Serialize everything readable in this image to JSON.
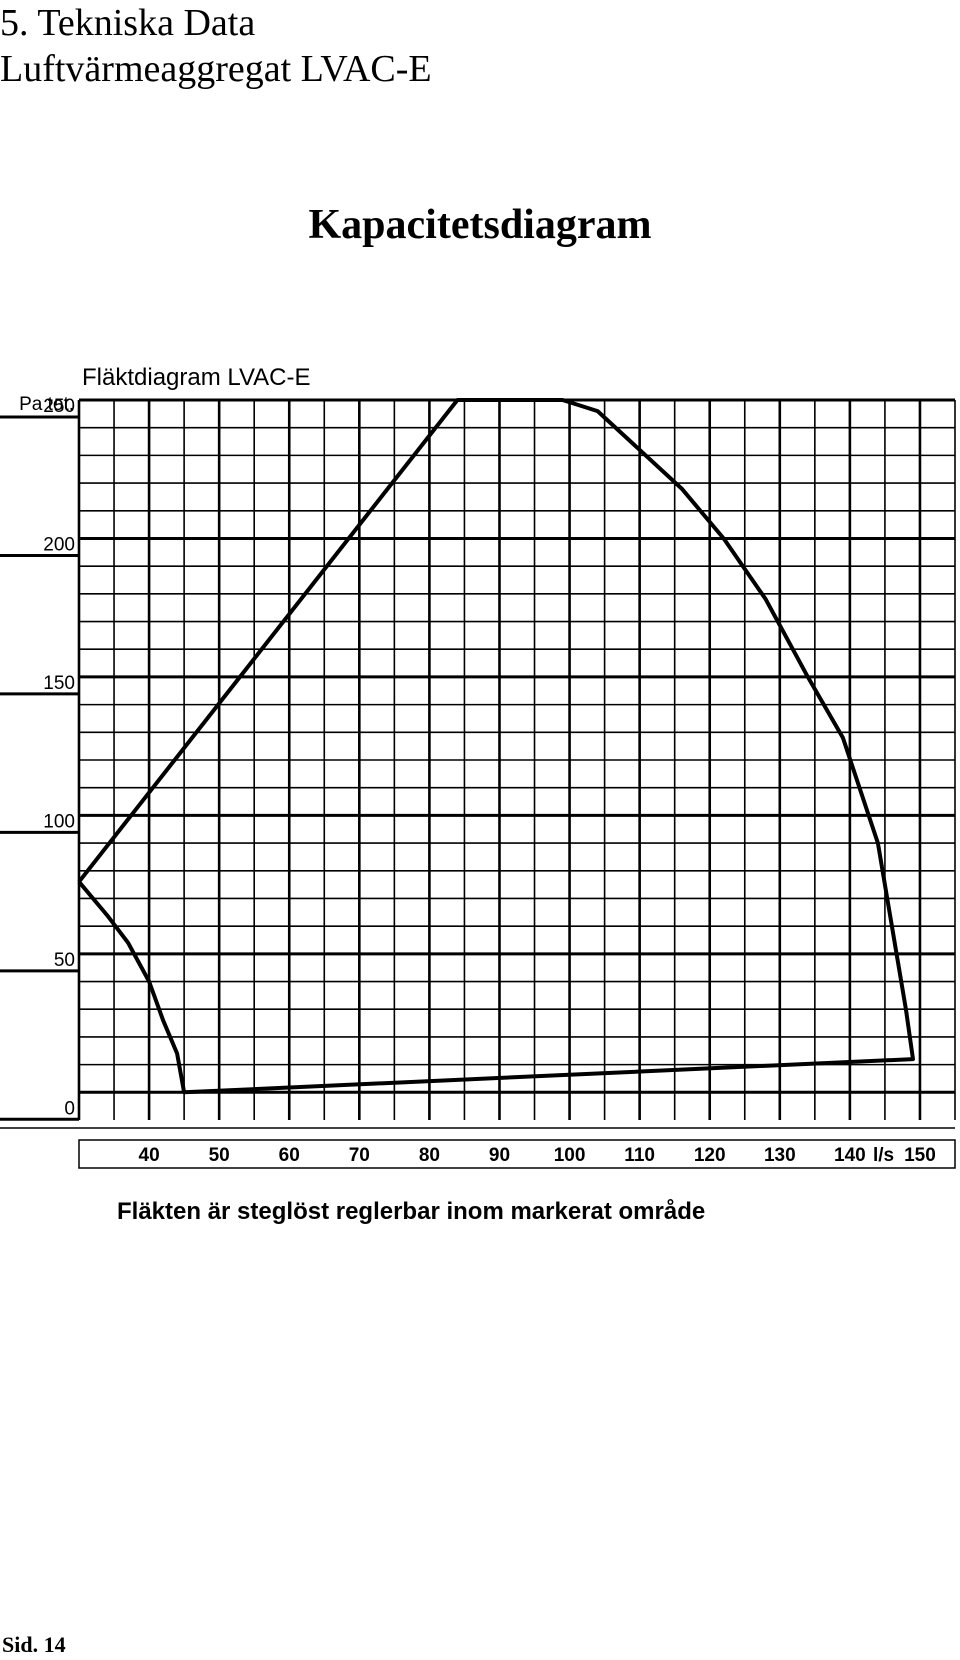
{
  "document": {
    "heading_line1": "5. Tekniska Data",
    "heading_line2": "Luftvärmeaggregat LVAC-E",
    "diagram_title": "Kapacitetsdiagram",
    "caption": "Fläkten är steglöst reglerbar inom markerat område",
    "page_number": "Sid. 14"
  },
  "chart_data": {
    "type": "area",
    "title": "Fläktdiagram LVAC-E",
    "ylabel": "Pa tot.",
    "x_unit": "l/s",
    "xlim": [
      30,
      155
    ],
    "ylim": [
      -10,
      250
    ],
    "x_ticks": [
      40,
      50,
      60,
      70,
      80,
      90,
      100,
      110,
      120,
      130,
      140,
      150
    ],
    "y_ticks": [
      0,
      50,
      100,
      150,
      200,
      250
    ],
    "grid": true,
    "series": [
      {
        "name": "",
        "points": [
          [
            30,
            76
          ],
          [
            34,
            64
          ],
          [
            37,
            54
          ],
          [
            40,
            40
          ],
          [
            42,
            26
          ],
          [
            44,
            14
          ],
          [
            45,
            0
          ],
          [
            149,
            12
          ],
          [
            148,
            30
          ],
          [
            144,
            90
          ],
          [
            139,
            128
          ],
          [
            134,
            150
          ],
          [
            128,
            178
          ],
          [
            122,
            200
          ],
          [
            116,
            218
          ],
          [
            110,
            232
          ],
          [
            104,
            246
          ],
          [
            99,
            250
          ],
          [
            84,
            250
          ],
          [
            30,
            76
          ]
        ]
      }
    ]
  }
}
